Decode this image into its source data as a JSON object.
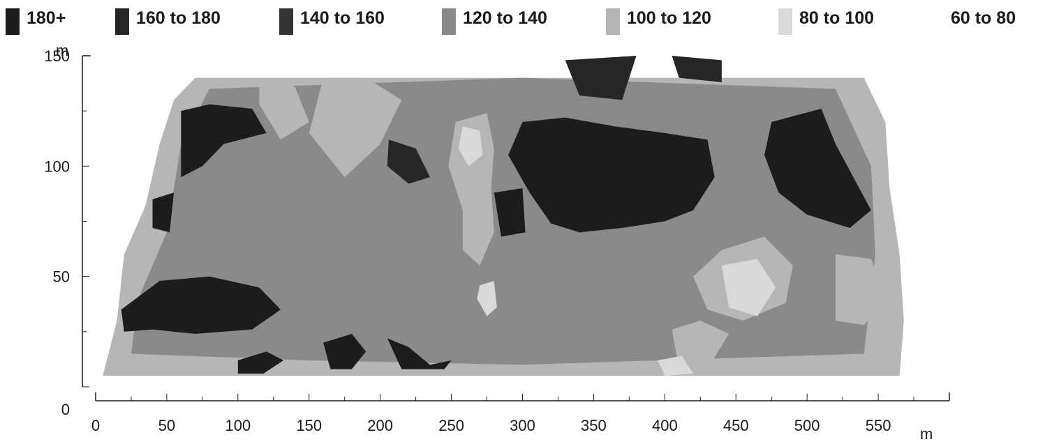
{
  "chart_data": {
    "type": "heatmap",
    "legend": [
      {
        "label": "180+",
        "color": "#1c1c1c"
      },
      {
        "label": "160 to 180",
        "color": "#262626"
      },
      {
        "label": "140 to 160",
        "color": "#343434"
      },
      {
        "label": "120 to 140",
        "color": "#8a8a8a"
      },
      {
        "label": "100 to 120",
        "color": "#b6b6b6"
      },
      {
        "label": "80 to 100",
        "color": "#d9d9d9"
      },
      {
        "label": "60 to 80",
        "color": "#ffffff"
      }
    ],
    "x_unit": "m",
    "y_unit": "m",
    "xlim": [
      0,
      600
    ],
    "ylim": [
      0,
      150
    ],
    "x_ticks": [
      0,
      50,
      100,
      150,
      200,
      250,
      300,
      350,
      400,
      450,
      500,
      550
    ],
    "y_ticks": [
      0,
      50,
      100,
      150
    ],
    "data_extent": {
      "x": [
        5,
        560
      ],
      "y": [
        5,
        140
      ]
    },
    "zones": [
      {
        "band": "180+",
        "points": [
          [
            60,
            125
          ],
          [
            80,
            128
          ],
          [
            110,
            126
          ],
          [
            120,
            115
          ],
          [
            90,
            110
          ],
          [
            75,
            100
          ],
          [
            60,
            95
          ]
        ]
      },
      {
        "band": "180+",
        "points": [
          [
            40,
            85
          ],
          [
            55,
            88
          ],
          [
            52,
            70
          ],
          [
            40,
            72
          ]
        ]
      },
      {
        "band": "180+",
        "points": [
          [
            18,
            35
          ],
          [
            45,
            48
          ],
          [
            80,
            50
          ],
          [
            115,
            45
          ],
          [
            130,
            35
          ],
          [
            110,
            26
          ],
          [
            70,
            24
          ],
          [
            40,
            26
          ],
          [
            20,
            25
          ]
        ]
      },
      {
        "band": "160 to 180",
        "points": [
          [
            206,
            112
          ],
          [
            225,
            108
          ],
          [
            235,
            95
          ],
          [
            220,
            92
          ],
          [
            205,
            100
          ]
        ]
      },
      {
        "band": "180+",
        "points": [
          [
            300,
            120
          ],
          [
            330,
            122
          ],
          [
            365,
            118
          ],
          [
            400,
            115
          ],
          [
            430,
            112
          ],
          [
            435,
            95
          ],
          [
            420,
            80
          ],
          [
            400,
            75
          ],
          [
            370,
            72
          ],
          [
            340,
            70
          ],
          [
            320,
            74
          ],
          [
            305,
            88
          ],
          [
            290,
            105
          ]
        ]
      },
      {
        "band": "180+",
        "points": [
          [
            280,
            88
          ],
          [
            300,
            90
          ],
          [
            302,
            70
          ],
          [
            285,
            68
          ]
        ]
      },
      {
        "band": "180+",
        "points": [
          [
            475,
            120
          ],
          [
            510,
            126
          ],
          [
            520,
            110
          ],
          [
            535,
            92
          ],
          [
            545,
            80
          ],
          [
            530,
            72
          ],
          [
            500,
            78
          ],
          [
            480,
            88
          ],
          [
            470,
            105
          ]
        ]
      },
      {
        "band": "180+",
        "points": [
          [
            160,
            20
          ],
          [
            180,
            24
          ],
          [
            190,
            16
          ],
          [
            180,
            8
          ],
          [
            165,
            8
          ]
        ]
      },
      {
        "band": "180+",
        "points": [
          [
            205,
            22
          ],
          [
            220,
            18
          ],
          [
            235,
            10
          ],
          [
            250,
            12
          ],
          [
            245,
            8
          ],
          [
            215,
            8
          ]
        ]
      },
      {
        "band": "180+",
        "points": [
          [
            100,
            12
          ],
          [
            120,
            16
          ],
          [
            132,
            12
          ],
          [
            118,
            6
          ],
          [
            100,
            6
          ]
        ]
      },
      {
        "band": "160 to 180",
        "points": [
          [
            330,
            148
          ],
          [
            380,
            150
          ],
          [
            370,
            130
          ],
          [
            340,
            132
          ]
        ]
      },
      {
        "band": "160 to 180",
        "points": [
          [
            405,
            150
          ],
          [
            440,
            148
          ],
          [
            440,
            138
          ],
          [
            410,
            140
          ]
        ]
      },
      {
        "band": "120 to 140",
        "points": [
          [
            400,
            50
          ],
          [
            420,
            44
          ],
          [
            430,
            36
          ],
          [
            405,
            30
          ],
          [
            390,
            40
          ]
        ]
      },
      {
        "band": "100 to 120",
        "points": [
          [
            190,
            140
          ],
          [
            215,
            130
          ],
          [
            200,
            110
          ],
          [
            175,
            95
          ],
          [
            150,
            115
          ],
          [
            160,
            140
          ]
        ]
      },
      {
        "band": "100 to 120",
        "points": [
          [
            253,
            120
          ],
          [
            275,
            124
          ],
          [
            280,
            108
          ],
          [
            278,
            90
          ],
          [
            280,
            70
          ],
          [
            270,
            55
          ],
          [
            258,
            62
          ],
          [
            258,
            80
          ],
          [
            248,
            100
          ]
        ]
      },
      {
        "band": "100 to 120",
        "points": [
          [
            440,
            62
          ],
          [
            470,
            68
          ],
          [
            490,
            55
          ],
          [
            485,
            38
          ],
          [
            455,
            30
          ],
          [
            430,
            35
          ],
          [
            420,
            50
          ]
        ]
      },
      {
        "band": "100 to 120",
        "points": [
          [
            115,
            140
          ],
          [
            140,
            136
          ],
          [
            150,
            120
          ],
          [
            130,
            112
          ],
          [
            115,
            128
          ]
        ]
      },
      {
        "band": "100 to 120",
        "points": [
          [
            520,
            60
          ],
          [
            545,
            58
          ],
          [
            555,
            40
          ],
          [
            540,
            28
          ],
          [
            520,
            30
          ]
        ]
      },
      {
        "band": "100 to 120",
        "points": [
          [
            405,
            26
          ],
          [
            425,
            30
          ],
          [
            445,
            24
          ],
          [
            430,
            8
          ],
          [
            410,
            8
          ]
        ]
      },
      {
        "band": "80 to 100",
        "points": [
          [
            258,
            118
          ],
          [
            270,
            116
          ],
          [
            272,
            105
          ],
          [
            262,
            100
          ],
          [
            255,
            108
          ]
        ]
      },
      {
        "band": "80 to 100",
        "points": [
          [
            270,
            46
          ],
          [
            280,
            48
          ],
          [
            282,
            36
          ],
          [
            275,
            32
          ],
          [
            268,
            40
          ]
        ]
      },
      {
        "band": "80 to 100",
        "points": [
          [
            440,
            55
          ],
          [
            465,
            58
          ],
          [
            478,
            45
          ],
          [
            465,
            32
          ],
          [
            445,
            36
          ]
        ]
      },
      {
        "band": "80 to 100",
        "points": [
          [
            395,
            12
          ],
          [
            412,
            14
          ],
          [
            420,
            6
          ],
          [
            400,
            5
          ]
        ]
      }
    ]
  }
}
